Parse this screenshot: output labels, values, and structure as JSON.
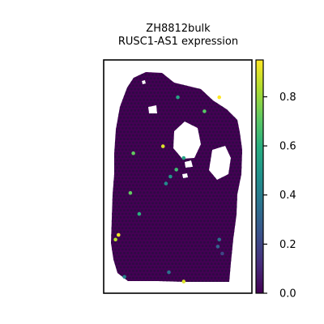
{
  "chart_data": {
    "type": "scatter",
    "title": "ZH8812bulk\nRUSC1-AS1 expression",
    "title_lines": [
      "ZH8812bulk",
      "RUSC1-AS1 expression"
    ],
    "xlabel": "",
    "ylabel": "",
    "grid": false,
    "colormap": "viridis",
    "colorbar": {
      "min": 0.0,
      "max": 0.95,
      "ticks": [
        0.0,
        0.2,
        0.4,
        0.6,
        0.8
      ],
      "tick_labels": [
        "0.0",
        "0.2",
        "0.4",
        "0.6",
        "0.8"
      ],
      "placement": "right"
    },
    "background_value": 0.0,
    "highlighted_points": [
      {
        "x": 0.78,
        "y": 0.84,
        "value": 0.95
      },
      {
        "x": 0.5,
        "y": 0.84,
        "value": 0.55
      },
      {
        "x": 0.68,
        "y": 0.78,
        "value": 0.7
      },
      {
        "x": 0.4,
        "y": 0.63,
        "value": 0.9
      },
      {
        "x": 0.2,
        "y": 0.6,
        "value": 0.72
      },
      {
        "x": 0.54,
        "y": 0.58,
        "value": 0.55
      },
      {
        "x": 0.45,
        "y": 0.5,
        "value": 0.5
      },
      {
        "x": 0.49,
        "y": 0.53,
        "value": 0.65
      },
      {
        "x": 0.42,
        "y": 0.47,
        "value": 0.45
      },
      {
        "x": 0.18,
        "y": 0.43,
        "value": 0.72
      },
      {
        "x": 0.24,
        "y": 0.34,
        "value": 0.6
      },
      {
        "x": 0.1,
        "y": 0.25,
        "value": 0.93
      },
      {
        "x": 0.08,
        "y": 0.23,
        "value": 0.85
      },
      {
        "x": 0.78,
        "y": 0.23,
        "value": 0.35
      },
      {
        "x": 0.8,
        "y": 0.17,
        "value": 0.2
      },
      {
        "x": 0.77,
        "y": 0.2,
        "value": 0.3
      },
      {
        "x": 0.44,
        "y": 0.09,
        "value": 0.35
      },
      {
        "x": 0.14,
        "y": 0.07,
        "value": 0.42
      },
      {
        "x": 0.54,
        "y": 0.05,
        "value": 0.9
      }
    ]
  }
}
